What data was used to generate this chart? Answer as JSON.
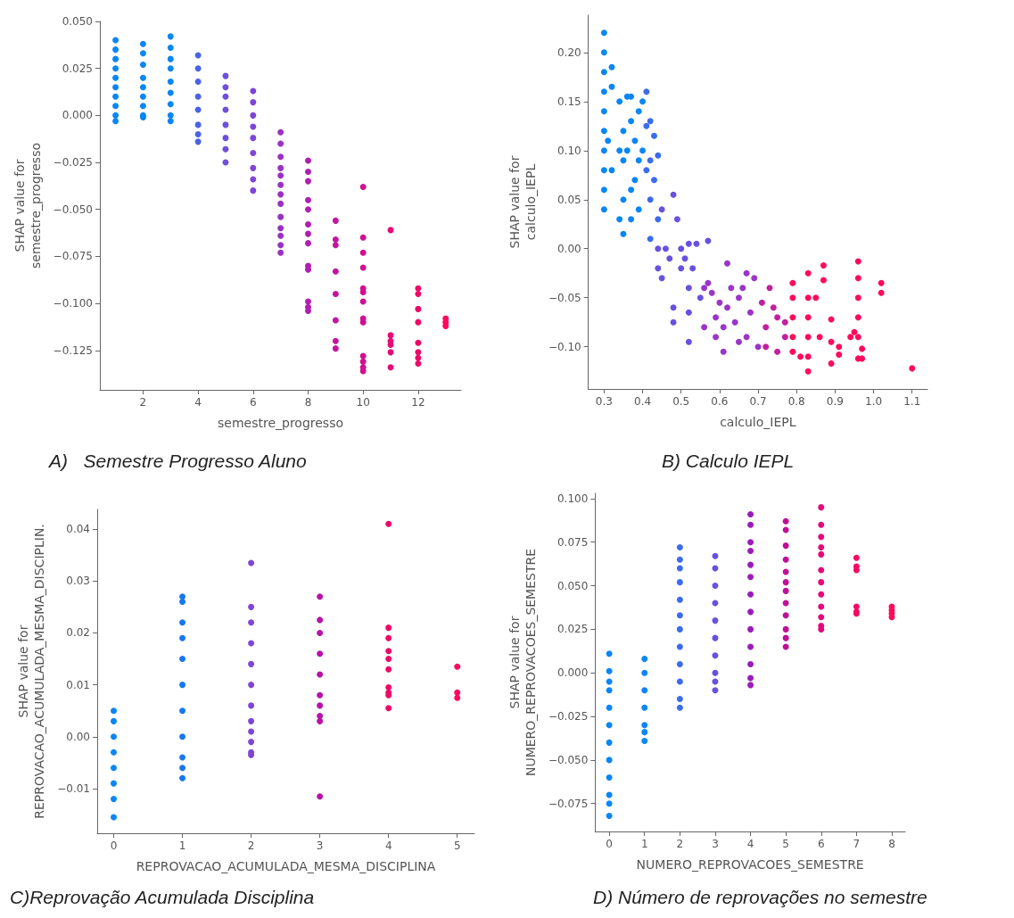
{
  "chart_data": [
    {
      "type": "scatter",
      "title": "A)   Semestre Progresso Aluno",
      "xlabel": "semestre_progresso",
      "ylabel": "SHAP value for\nsemestre_progresso",
      "marker": "circle",
      "xlim": [
        0.43,
        13.56
      ],
      "xticks": [
        2,
        4,
        6,
        8,
        10,
        12
      ],
      "ylim": [
        -0.146,
        0.05
      ],
      "yticks": [
        {
          "value": -0.125,
          "label": "−0.125"
        },
        {
          "value": -0.1,
          "label": "−0.100"
        },
        {
          "value": -0.075,
          "label": "−0.075"
        },
        {
          "value": -0.05,
          "label": "−0.050"
        },
        {
          "value": -0.025,
          "label": "−0.025"
        },
        {
          "value": 0,
          "label": "0.000"
        },
        {
          "value": 0.025,
          "label": "0.025"
        },
        {
          "value": 0.05,
          "label": "0.050"
        }
      ],
      "series": [
        {
          "color": "#0a86f5",
          "x": [
            1,
            1,
            1,
            1,
            1,
            1,
            1,
            1,
            1,
            1
          ],
          "values": [
            0.04,
            0.035,
            0.03,
            0.025,
            0.02,
            0.015,
            0.01,
            0.005,
            0,
            -0.003
          ]
        },
        {
          "color": "#0a86f5",
          "x": [
            2,
            2,
            2,
            2,
            2,
            2,
            2,
            2,
            2
          ],
          "values": [
            0.038,
            0.033,
            0.027,
            0.02,
            0.015,
            0.01,
            0.005,
            0,
            -0.001
          ]
        },
        {
          "color": "#0a86f5",
          "x": [
            3,
            3,
            3,
            3,
            3,
            3,
            3,
            3,
            3
          ],
          "values": [
            0.042,
            0.036,
            0.03,
            0.025,
            0.018,
            0.012,
            0.006,
            0,
            -0.003
          ]
        },
        {
          "color": "#4a62e6",
          "x": [
            4,
            4,
            4,
            4,
            4,
            4,
            4,
            4
          ],
          "values": [
            0.032,
            0.025,
            0.018,
            0.01,
            0.003,
            -0.005,
            -0.01,
            -0.014
          ]
        },
        {
          "color": "#6f4fdc",
          "x": [
            5,
            5,
            5,
            5,
            5,
            5,
            5,
            5
          ],
          "values": [
            0.021,
            0.015,
            0.01,
            0.003,
            -0.005,
            -0.012,
            -0.018,
            -0.025
          ]
        },
        {
          "color": "#7e45d8",
          "x": [
            6,
            6,
            6,
            6,
            6,
            6,
            6,
            6,
            6
          ],
          "values": [
            0.013,
            0.007,
            0,
            -0.006,
            -0.012,
            -0.02,
            -0.028,
            -0.034,
            -0.04
          ]
        },
        {
          "color": "#9c30c4",
          "x": [
            7,
            7,
            7,
            7,
            7,
            7,
            7,
            7,
            7,
            7,
            7,
            7,
            7
          ],
          "values": [
            -0.009,
            -0.015,
            -0.022,
            -0.028,
            -0.032,
            -0.037,
            -0.042,
            -0.047,
            -0.054,
            -0.06,
            -0.064,
            -0.069,
            -0.073
          ]
        },
        {
          "color": "#b01fb0",
          "x": [
            8,
            8,
            8,
            8,
            8,
            8,
            8,
            8,
            8,
            8,
            8,
            8,
            8
          ],
          "values": [
            -0.024,
            -0.03,
            -0.035,
            -0.045,
            -0.05,
            -0.058,
            -0.063,
            -0.068,
            -0.08,
            -0.082,
            -0.099,
            -0.102,
            -0.104
          ]
        },
        {
          "color": "#c3169c",
          "x": [
            9,
            9,
            9,
            9,
            9,
            9,
            9,
            9
          ],
          "values": [
            -0.056,
            -0.066,
            -0.069,
            -0.083,
            -0.095,
            -0.109,
            -0.12,
            -0.124
          ]
        },
        {
          "color": "#d01090",
          "x": [
            10,
            10,
            10,
            10,
            10,
            10,
            10,
            10,
            10,
            10,
            10,
            10,
            10
          ],
          "values": [
            -0.038,
            -0.065,
            -0.073,
            -0.081,
            -0.092,
            -0.094,
            -0.099,
            -0.108,
            -0.11,
            -0.128,
            -0.131,
            -0.134,
            -0.136
          ]
        },
        {
          "color": "#e60a78",
          "x": [
            11,
            11,
            11,
            11,
            11,
            11
          ],
          "values": [
            -0.061,
            -0.117,
            -0.12,
            -0.122,
            -0.126,
            -0.134
          ]
        },
        {
          "color": "#ee0868",
          "x": [
            12,
            12,
            12,
            12,
            12,
            12,
            12,
            12
          ],
          "values": [
            -0.092,
            -0.095,
            -0.103,
            -0.11,
            -0.121,
            -0.126,
            -0.129,
            -0.132
          ]
        },
        {
          "color": "#ff0a5c",
          "x": [
            13,
            13,
            13
          ],
          "values": [
            -0.108,
            -0.11,
            -0.112
          ]
        }
      ]
    },
    {
      "type": "scatter",
      "title": "B) Calculo IEPL",
      "xlabel": "calculo_IEPL",
      "ylabel": "SHAP value for\ncalculo_IEPL",
      "marker": "circle",
      "xlim": [
        0.259,
        1.14
      ],
      "xticks": [
        0.3,
        0.4,
        0.5,
        0.6,
        0.7,
        0.8,
        0.9,
        {
          "value": 1,
          "label": "1.0"
        },
        1.1
      ],
      "ylim": [
        -0.143,
        0.238
      ],
      "yticks": [
        {
          "value": -0.1,
          "label": "−0.10"
        },
        {
          "value": -0.05,
          "label": "−0.05"
        },
        {
          "value": 0,
          "label": "0.00"
        },
        0.05,
        {
          "value": 0.1,
          "label": "0.10"
        },
        0.15,
        {
          "value": 0.2,
          "label": "0.20"
        }
      ],
      "series": [
        {
          "color": "#0a86f5",
          "x": [
            0.3,
            0.3,
            0.3,
            0.3,
            0.3,
            0.3,
            0.3,
            0.3,
            0.3,
            0.3,
            0.32,
            0.32,
            0.31,
            0.32,
            0.34,
            0.34,
            0.34,
            0.35,
            0.35,
            0.35,
            0.35,
            0.36,
            0.36,
            0.37,
            0.37,
            0.37,
            0.37,
            0.38,
            0.38,
            0.39,
            0.39,
            0.39,
            0.4,
            0.4
          ],
          "values": [
            0.22,
            0.2,
            0.18,
            0.16,
            0.14,
            0.12,
            0.1,
            0.08,
            0.06,
            0.04,
            0.185,
            0.165,
            0.11,
            0.08,
            0.15,
            0.1,
            0.03,
            0.12,
            0.09,
            0.05,
            0.015,
            0.155,
            0.1,
            0.155,
            0.13,
            0.06,
            0.03,
            0.11,
            0.07,
            0.14,
            0.09,
            0.04,
            0.15,
            0.1
          ]
        },
        {
          "color": "#3a6cec",
          "x": [
            0.41,
            0.41,
            0.41,
            0.42,
            0.42,
            0.42,
            0.43,
            0.43,
            0.42,
            0.44,
            0.44
          ],
          "values": [
            0.16,
            0.125,
            0.08,
            0.13,
            0.09,
            0.05,
            0.115,
            0.07,
            0.01,
            0.095,
            0.03
          ]
        },
        {
          "color": "#6a50de",
          "x": [
            0.44,
            0.44,
            0.45,
            0.45,
            0.46,
            0.47,
            0.48,
            0.48,
            0.48,
            0.49,
            0.5,
            0.5,
            0.51,
            0.52,
            0.52,
            0.52,
            0.52,
            0.53,
            0.54,
            0.55,
            0.57
          ],
          "values": [
            0,
            -0.02,
            0.04,
            -0.03,
            0,
            -0.01,
            0.055,
            -0.06,
            -0.075,
            0.03,
            0,
            -0.02,
            -0.01,
            0.005,
            -0.04,
            -0.065,
            -0.095,
            -0.02,
            0.005,
            -0.05,
            0.008
          ]
        },
        {
          "color": "#9a35c8",
          "x": [
            0.56,
            0.56,
            0.57,
            0.58,
            0.59,
            0.59,
            0.6,
            0.61,
            0.61,
            0.62,
            0.62,
            0.63,
            0.64,
            0.65,
            0.65,
            0.66,
            0.67,
            0.67,
            0.68,
            0.69,
            0.7
          ],
          "values": [
            -0.04,
            -0.08,
            -0.035,
            -0.045,
            -0.07,
            -0.09,
            -0.055,
            -0.08,
            -0.105,
            -0.015,
            -0.06,
            -0.04,
            -0.075,
            -0.095,
            -0.05,
            -0.04,
            -0.025,
            -0.09,
            -0.065,
            -0.03,
            -0.1
          ]
        },
        {
          "color": "#c0209e",
          "x": [
            0.71,
            0.72,
            0.72,
            0.73,
            0.74,
            0.75,
            0.75,
            0.77,
            0.77
          ],
          "values": [
            -0.055,
            -0.08,
            -0.1,
            -0.04,
            -0.06,
            -0.105,
            -0.07,
            -0.075,
            -0.09
          ]
        },
        {
          "color": "#ff0a5c",
          "x": [
            0.79,
            0.79,
            0.79,
            0.79,
            0.79,
            0.83,
            0.83,
            0.83,
            0.83,
            0.83,
            0.83,
            0.81,
            0.85,
            0.86,
            0.87,
            0.87,
            0.89,
            0.89,
            0.89,
            0.91,
            0.91,
            0.94,
            0.95,
            0.96,
            0.96,
            0.96,
            0.96,
            0.96,
            0.96,
            0.97,
            0.97,
            1.02,
            1.02,
            1.1
          ],
          "values": [
            -0.035,
            -0.05,
            -0.07,
            -0.09,
            -0.105,
            -0.025,
            -0.05,
            -0.07,
            -0.09,
            -0.11,
            -0.125,
            -0.11,
            -0.05,
            -0.09,
            -0.017,
            -0.032,
            -0.072,
            -0.095,
            -0.117,
            -0.1,
            -0.108,
            -0.09,
            -0.085,
            -0.013,
            -0.03,
            -0.05,
            -0.07,
            -0.09,
            -0.112,
            -0.102,
            -0.112,
            -0.035,
            -0.045,
            -0.122
          ]
        }
      ]
    },
    {
      "type": "scatter",
      "title": "C)Reprovação Acumulada Disciplina",
      "xlabel": "REPROVACAO_ACUMULADA_MESMA_DISCIPLINA",
      "ylabel": "SHAP value for\nREPROVACAO_ACUMULADA_MESMA_DISCIPLIN.",
      "marker": "circle",
      "xlim": [
        -0.24,
        5.25
      ],
      "xticks": [
        0,
        1,
        2,
        3,
        4,
        5
      ],
      "ylim": [
        -0.0186,
        0.0438
      ],
      "yticks": [
        {
          "value": -0.01,
          "label": "−0.01"
        },
        {
          "value": 0,
          "label": "0.00"
        },
        0.01,
        0.02,
        0.03,
        0.04
      ],
      "series": [
        {
          "color": "#0a86f5",
          "x": [
            0,
            0,
            0,
            0,
            0,
            0,
            0,
            0
          ],
          "values": [
            0.005,
            0.003,
            0,
            -0.003,
            -0.006,
            -0.009,
            -0.012,
            -0.0155
          ]
        },
        {
          "color": "#1877ee",
          "x": [
            1,
            1,
            1,
            1,
            1,
            1,
            1,
            1,
            1,
            1,
            1
          ],
          "values": [
            0.027,
            0.026,
            0.022,
            0.019,
            0.015,
            0.01,
            0.005,
            0,
            -0.004,
            -0.006,
            -0.008
          ]
        },
        {
          "color": "#7e45d8",
          "x": [
            2,
            2,
            2,
            2,
            2,
            2,
            2,
            2,
            2,
            2,
            2,
            2
          ],
          "values": [
            0.0335,
            0.025,
            0.022,
            0.018,
            0.014,
            0.01,
            0.006,
            0.003,
            0.001,
            -0.001,
            -0.003,
            -0.0035
          ]
        },
        {
          "color": "#b812a8",
          "x": [
            3,
            3,
            3,
            3,
            3,
            3,
            3,
            3,
            3,
            3
          ],
          "values": [
            0.027,
            0.0225,
            0.02,
            0.016,
            0.012,
            0.008,
            0.006,
            0.004,
            0.003,
            -0.0115
          ]
        },
        {
          "color": "#ee0868",
          "x": [
            4,
            4,
            4,
            4,
            4,
            4,
            4,
            4,
            4,
            4
          ],
          "values": [
            0.041,
            0.021,
            0.019,
            0.0165,
            0.015,
            0.013,
            0.0095,
            0.0085,
            0.008,
            0.0055
          ]
        },
        {
          "color": "#ff0a5c",
          "x": [
            5,
            5,
            5
          ],
          "values": [
            0.0135,
            0.0085,
            0.0075
          ]
        }
      ]
    },
    {
      "type": "scatter",
      "title": "D) Número de reprovações no semestre",
      "xlabel": "NUMERO_REPROVACOES_SEMESTRE",
      "ylabel": "SHAP value for\nNUMERO_REPROVACOES_SEMESTRE",
      "marker": "circle",
      "xlim": [
        -0.4,
        8.38
      ],
      "xticks": [
        0,
        1,
        2,
        3,
        4,
        5,
        6,
        7,
        8
      ],
      "ylim": [
        -0.091,
        0.103
      ],
      "yticks": [
        {
          "value": -0.075,
          "label": "−0.075"
        },
        {
          "value": -0.05,
          "label": "−0.050"
        },
        {
          "value": -0.025,
          "label": "−0.025"
        },
        {
          "value": 0,
          "label": "0.000"
        },
        0.025,
        {
          "value": 0.05,
          "label": "0.050"
        },
        0.075,
        {
          "value": 0.1,
          "label": "0.100"
        }
      ],
      "series": [
        {
          "color": "#0a86f5",
          "x": [
            0,
            0,
            0,
            0,
            0,
            0,
            0,
            0,
            0,
            0,
            0,
            0
          ],
          "values": [
            0.011,
            0.001,
            -0.005,
            -0.01,
            -0.02,
            -0.03,
            -0.04,
            -0.05,
            -0.06,
            -0.07,
            -0.075,
            -0.082
          ]
        },
        {
          "color": "#0a86f5",
          "x": [
            1,
            1,
            1,
            1,
            1,
            1,
            1
          ],
          "values": [
            0.008,
            0,
            -0.01,
            -0.02,
            -0.03,
            -0.034,
            -0.039
          ]
        },
        {
          "color": "#3a6cec",
          "x": [
            2,
            2,
            2,
            2,
            2,
            2,
            2,
            2,
            2,
            2,
            2,
            2
          ],
          "values": [
            0.072,
            0.065,
            0.06,
            0.052,
            0.042,
            0.033,
            0.025,
            0.015,
            0.005,
            -0.005,
            -0.015,
            -0.02
          ]
        },
        {
          "color": "#6a50de",
          "x": [
            3,
            3,
            3,
            3,
            3,
            3,
            3,
            3,
            3,
            3
          ],
          "values": [
            0.067,
            0.06,
            0.05,
            0.04,
            0.03,
            0.02,
            0.01,
            0,
            -0.005,
            -0.01
          ]
        },
        {
          "color": "#9a1cb8",
          "x": [
            4,
            4,
            4,
            4,
            4,
            4,
            4,
            4,
            4,
            4,
            4,
            4,
            4
          ],
          "values": [
            0.091,
            0.085,
            0.075,
            0.07,
            0.062,
            0.055,
            0.045,
            0.035,
            0.025,
            0.015,
            0.005,
            -0.003,
            -0.007
          ]
        },
        {
          "color": "#c01098",
          "x": [
            5,
            5,
            5,
            5,
            5,
            5,
            5,
            5,
            5,
            5,
            5,
            5
          ],
          "values": [
            0.087,
            0.082,
            0.073,
            0.065,
            0.058,
            0.052,
            0.047,
            0.04,
            0.033,
            0.025,
            0.02,
            0.015
          ]
        },
        {
          "color": "#e6087a",
          "x": [
            6,
            6,
            6,
            6,
            6,
            6,
            6,
            6,
            6,
            6,
            6,
            6
          ],
          "values": [
            0.095,
            0.085,
            0.078,
            0.072,
            0.068,
            0.059,
            0.052,
            0.045,
            0.038,
            0.032,
            0.027,
            0.025
          ]
        },
        {
          "color": "#f50a62",
          "x": [
            7,
            7,
            7,
            7,
            7,
            7
          ],
          "values": [
            0.066,
            0.061,
            0.059,
            0.038,
            0.035,
            0.034
          ]
        },
        {
          "color": "#ff0a5c",
          "x": [
            8,
            8,
            8,
            8
          ],
          "values": [
            0.038,
            0.036,
            0.034,
            0.032
          ]
        }
      ]
    }
  ]
}
